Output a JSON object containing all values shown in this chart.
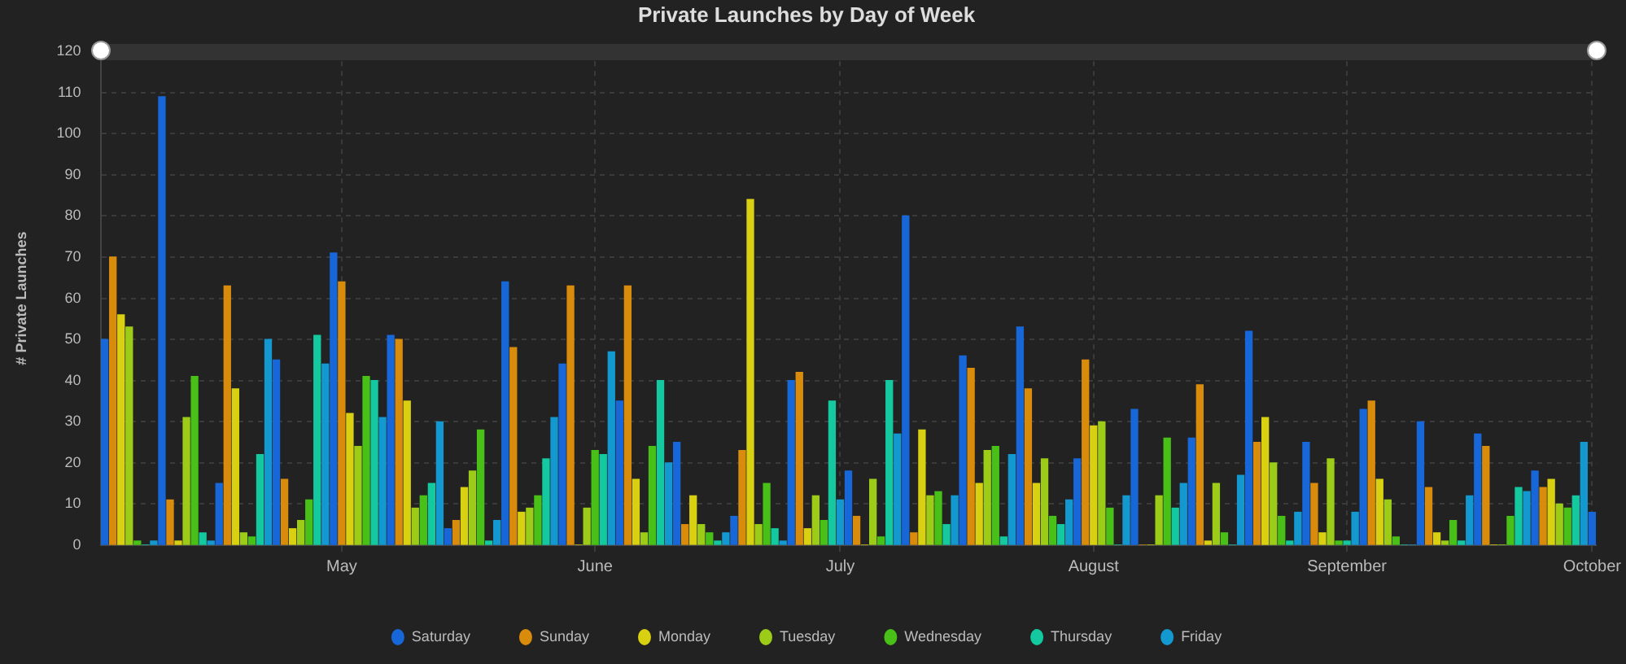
{
  "chart_data": {
    "type": "bar",
    "title": "Private Launches by Day of Week",
    "ylabel": "# Private Launches",
    "xlim": [
      "--04-16T12:00",
      "--10-16T12:00"
    ],
    "xticks": [
      {
        "value": "--05-16",
        "label": "May"
      },
      {
        "value": "--06-16",
        "label": "June"
      },
      {
        "value": "--07-16",
        "label": "July"
      },
      {
        "value": "--08-16",
        "label": "August"
      },
      {
        "value": "--09-16",
        "label": "September"
      },
      {
        "value": "--10-16",
        "label": "October"
      }
    ],
    "ylim": [
      0,
      120
    ],
    "yticks": [
      0,
      10,
      20,
      30,
      40,
      50,
      60,
      70,
      80,
      90,
      100,
      110,
      120
    ],
    "grid": true,
    "legend": "bottom",
    "series": [
      {
        "name": "Saturday",
        "color": "#1767d8",
        "x": [
          "--04-17",
          "--04-24",
          "--05-01",
          "--05-08",
          "--05-15",
          "--05-22",
          "--05-29",
          "--06-05",
          "--06-12",
          "--06-19",
          "--06-26",
          "--07-03",
          "--07-10",
          "--07-17",
          "--07-24",
          "--07-31",
          "--08-07",
          "--08-14",
          "--08-21",
          "--08-28",
          "--09-04",
          "--09-11",
          "--09-18",
          "--09-25",
          "--10-02",
          "--10-09",
          "--10-16"
        ],
        "values": [
          50,
          109,
          15,
          45,
          71,
          51,
          4,
          64,
          44,
          35,
          25,
          7,
          40,
          18,
          80,
          46,
          53,
          21,
          33,
          26,
          52,
          25,
          33,
          30,
          27,
          18,
          8
        ]
      },
      {
        "name": "Sunday",
        "color": "#d98c0c",
        "x": [
          "--04-18",
          "--04-25",
          "--05-02",
          "--05-09",
          "--05-16",
          "--05-23",
          "--05-30",
          "--06-06",
          "--06-13",
          "--06-20",
          "--06-27",
          "--07-04",
          "--07-11",
          "--07-18",
          "--07-25",
          "--08-01",
          "--08-08",
          "--08-15",
          "--08-22",
          "--08-29",
          "--09-05",
          "--09-12",
          "--09-19",
          "--09-26",
          "--10-03",
          "--10-10"
        ],
        "values": [
          70,
          11,
          63,
          16,
          64,
          50,
          6,
          48,
          63,
          63,
          5,
          23,
          42,
          7,
          3,
          43,
          38,
          45,
          0,
          39,
          25,
          15,
          35,
          14,
          24,
          14
        ]
      },
      {
        "name": "Monday",
        "color": "#d8d010",
        "x": [
          "--04-19",
          "--04-26",
          "--05-03",
          "--05-10",
          "--05-17",
          "--05-24",
          "--05-31",
          "--06-07",
          "--06-14",
          "--06-21",
          "--06-28",
          "--07-05",
          "--07-12",
          "--07-19",
          "--07-26",
          "--08-02",
          "--08-09",
          "--08-16",
          "--08-23",
          "--08-30",
          "--09-06",
          "--09-13",
          "--09-20",
          "--09-27",
          "--10-04",
          "--10-11"
        ],
        "values": [
          56,
          1,
          38,
          4,
          32,
          35,
          14,
          8,
          0,
          16,
          12,
          84,
          4,
          0,
          28,
          15,
          15,
          29,
          0,
          1,
          31,
          3,
          16,
          3,
          0,
          16
        ]
      },
      {
        "name": "Tuesday",
        "color": "#9ccc18",
        "x": [
          "--04-20",
          "--04-27",
          "--05-04",
          "--05-11",
          "--05-18",
          "--05-25",
          "--06-01",
          "--06-08",
          "--06-15",
          "--06-22",
          "--06-29",
          "--07-06",
          "--07-13",
          "--07-20",
          "--07-27",
          "--08-03",
          "--08-10",
          "--08-17",
          "--08-24",
          "--08-31",
          "--09-07",
          "--09-14",
          "--09-21",
          "--09-28",
          "--10-05",
          "--10-12"
        ],
        "values": [
          53,
          31,
          3,
          6,
          24,
          9,
          18,
          9,
          9,
          3,
          5,
          5,
          12,
          16,
          12,
          23,
          21,
          30,
          12,
          15,
          20,
          21,
          11,
          1,
          0,
          10
        ]
      },
      {
        "name": "Wednesday",
        "color": "#48c018",
        "x": [
          "--04-21",
          "--04-28",
          "--05-05",
          "--05-12",
          "--05-19",
          "--05-26",
          "--06-02",
          "--06-09",
          "--06-16",
          "--06-23",
          "--06-30",
          "--07-07",
          "--07-14",
          "--07-21",
          "--07-28",
          "--08-04",
          "--08-11",
          "--08-18",
          "--08-25",
          "--09-01",
          "--09-08",
          "--09-15",
          "--09-22",
          "--09-29",
          "--10-06",
          "--10-13"
        ],
        "values": [
          1,
          41,
          2,
          11,
          41,
          12,
          28,
          12,
          23,
          24,
          3,
          15,
          6,
          2,
          13,
          24,
          7,
          9,
          26,
          3,
          7,
          1,
          2,
          6,
          7,
          9
        ]
      },
      {
        "name": "Thursday",
        "color": "#14c8a0",
        "x": [
          "--04-22",
          "--04-29",
          "--05-06",
          "--05-13",
          "--05-20",
          "--05-27",
          "--06-03",
          "--06-10",
          "--06-17",
          "--06-24",
          "--07-01",
          "--07-08",
          "--07-15",
          "--07-22",
          "--07-29",
          "--08-05",
          "--08-12",
          "--08-19",
          "--08-26",
          "--09-02",
          "--09-09",
          "--09-16",
          "--09-23",
          "--09-30",
          "--10-07",
          "--10-14"
        ],
        "values": [
          0,
          3,
          22,
          51,
          40,
          15,
          1,
          21,
          22,
          40,
          1,
          4,
          35,
          40,
          5,
          2,
          5,
          0,
          9,
          0,
          1,
          1,
          0,
          1,
          14,
          12
        ]
      },
      {
        "name": "Friday",
        "color": "#1498d0",
        "x": [
          "--04-23",
          "--04-30",
          "--05-07",
          "--05-14",
          "--05-21",
          "--05-28",
          "--06-04",
          "--06-11",
          "--06-18",
          "--06-25",
          "--07-02",
          "--07-09",
          "--07-16",
          "--07-23",
          "--07-30",
          "--08-06",
          "--08-13",
          "--08-20",
          "--08-27",
          "--09-03",
          "--09-10",
          "--09-17",
          "--09-24",
          "--10-01",
          "--10-08",
          "--10-15"
        ],
        "values": [
          1,
          1,
          50,
          44,
          31,
          30,
          6,
          31,
          47,
          20,
          3,
          1,
          11,
          27,
          12,
          22,
          11,
          12,
          15,
          17,
          8,
          8,
          0,
          12,
          13,
          25
        ]
      }
    ]
  }
}
